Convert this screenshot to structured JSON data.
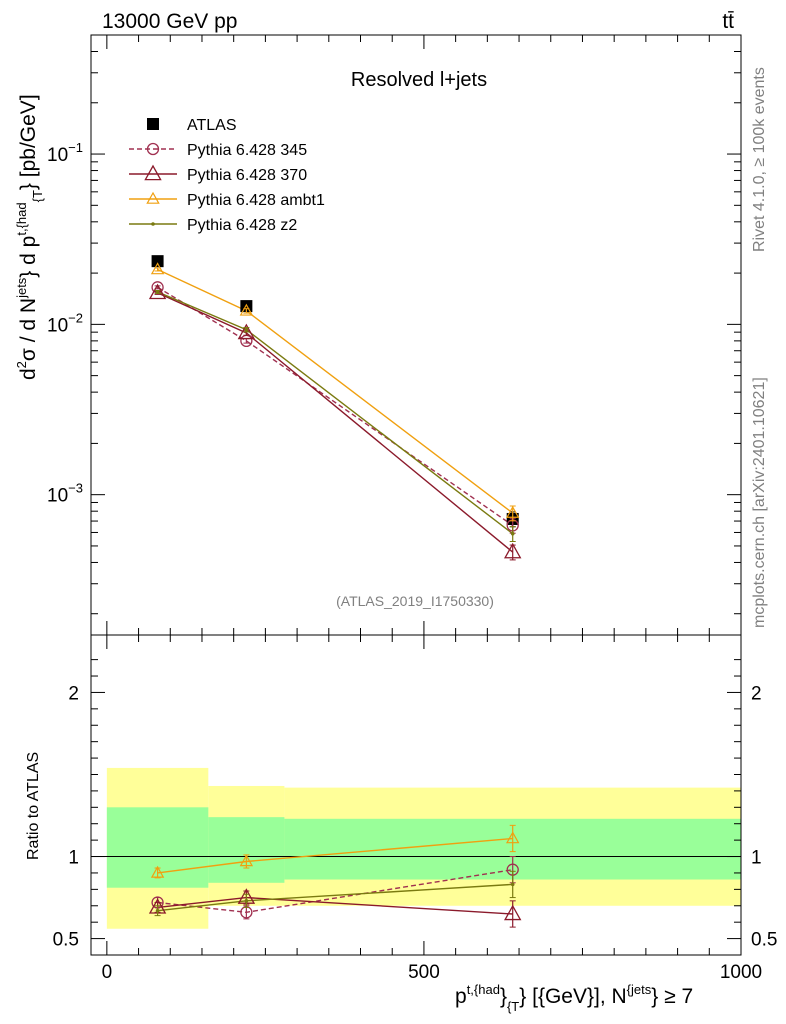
{
  "header": {
    "energy_label": "13000 GeV pp",
    "process_label": "tt̄"
  },
  "side_labels": {
    "rivet": "Rivet 4.1.0, ≥ 100k events",
    "mcplots": "mcplots.cern.ch [arXiv:2401.10621]"
  },
  "chart_data": [
    {
      "type": "line",
      "title": "Resolved l+jets",
      "analysis_id": "(ATLAS_2019_I1750330)",
      "ylabel": "d²σ / d N^{jets} d p^{t,{had}}_{T} [pb/GeV]",
      "yscale": "log",
      "ylim": [
        0.00015,
        0.5
      ],
      "xlim": [
        -25,
        1000
      ],
      "y_ticks": [
        {
          "value": 0.1,
          "label": "10^-1"
        },
        {
          "value": 0.01,
          "label": "10^-2"
        },
        {
          "value": 0.001,
          "label": "10^-3"
        }
      ],
      "series": [
        {
          "name": "ATLAS",
          "color": "#000000",
          "marker": "square",
          "style": "points",
          "x": [
            80,
            220,
            640
          ],
          "y": [
            0.0235,
            0.0128,
            0.00072
          ]
        },
        {
          "name": "Pythia 6.428 345",
          "color": "#A03050",
          "marker": "circle-open",
          "style": "dashed",
          "x": [
            80,
            220,
            640
          ],
          "y": [
            0.0165,
            0.008,
            0.00066
          ]
        },
        {
          "name": "Pythia 6.428 370",
          "color": "#8B1A2B",
          "marker": "triangle-open",
          "style": "solid",
          "x": [
            80,
            220,
            640
          ],
          "y": [
            0.0153,
            0.0089,
            0.00046
          ]
        },
        {
          "name": "Pythia 6.428 ambt1",
          "color": "#F0A010",
          "marker": "triangle-open-small",
          "style": "solid",
          "x": [
            80,
            220,
            640
          ],
          "y": [
            0.021,
            0.012,
            0.00078
          ]
        },
        {
          "name": "Pythia 6.428 z2",
          "color": "#7A7A10",
          "marker": "dot",
          "style": "solid",
          "x": [
            80,
            220,
            640
          ],
          "y": [
            0.0155,
            0.0093,
            0.00059
          ]
        }
      ]
    },
    {
      "type": "line",
      "ylabel": "Ratio to ATLAS",
      "xlabel": "p^{t,{had}}_{{T}} [{GeV}], N^{{jets}} ≥ 7",
      "ylim": [
        0.4,
        2.35
      ],
      "xlim": [
        -25,
        1000
      ],
      "y_ticks": [
        {
          "value": 0.5,
          "label": "0.5"
        },
        {
          "value": 1,
          "label": "1"
        },
        {
          "value": 2,
          "label": "2"
        }
      ],
      "x_ticks": [
        {
          "value": 0,
          "label": "0"
        },
        {
          "value": 500,
          "label": "500"
        },
        {
          "value": 1000,
          "label": "1000"
        }
      ],
      "bands": {
        "yellow": [
          {
            "x0": 0,
            "x1": 160,
            "lo": 0.56,
            "hi": 1.54
          },
          {
            "x0": 160,
            "x1": 280,
            "lo": 0.7,
            "hi": 1.43
          },
          {
            "x0": 280,
            "x1": 1000,
            "lo": 0.7,
            "hi": 1.42
          }
        ],
        "green": [
          {
            "x0": 0,
            "x1": 160,
            "lo": 0.81,
            "hi": 1.3
          },
          {
            "x0": 160,
            "x1": 280,
            "lo": 0.84,
            "hi": 1.24
          },
          {
            "x0": 280,
            "x1": 1000,
            "lo": 0.86,
            "hi": 1.23
          }
        ]
      },
      "series": [
        {
          "name": "Pythia 6.428 345",
          "color": "#A03050",
          "marker": "circle-open",
          "style": "dashed",
          "x": [
            80,
            220,
            640
          ],
          "y": [
            0.72,
            0.66,
            0.92
          ]
        },
        {
          "name": "Pythia 6.428 370",
          "color": "#8B1A2B",
          "marker": "triangle-open",
          "style": "solid",
          "x": [
            80,
            220,
            640
          ],
          "y": [
            0.69,
            0.75,
            0.65
          ]
        },
        {
          "name": "Pythia 6.428 ambt1",
          "color": "#F0A010",
          "marker": "triangle-open-small",
          "style": "solid",
          "x": [
            80,
            220,
            640
          ],
          "y": [
            0.9,
            0.97,
            1.11
          ]
        },
        {
          "name": "Pythia 6.428 z2",
          "color": "#7A7A10",
          "marker": "dot",
          "style": "solid",
          "x": [
            80,
            220,
            640
          ],
          "y": [
            0.67,
            0.73,
            0.83
          ]
        }
      ]
    }
  ]
}
